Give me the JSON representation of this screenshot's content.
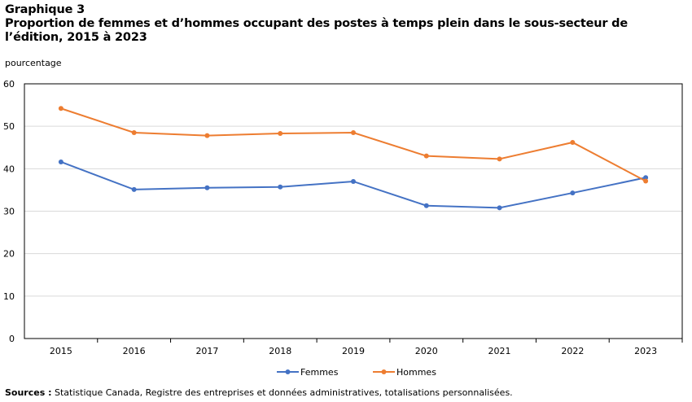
{
  "title_line1": "Graphique 3",
  "title_line2": "Proportion de femmes et d’hommes occupant des postes à temps plein dans le sous-secteur de l’édition, 2015 à 2023",
  "unit_label": "pourcentage",
  "source_label": "Sources :",
  "source_text": " Statistique Canada, Registre des entreprises et données administratives, totalisations personnalisées.",
  "chart_data": {
    "type": "line",
    "title": "Proportion de femmes et d’hommes occupant des postes à temps plein dans le sous-secteur de l’édition, 2015 à 2023",
    "ylabel": "pourcentage",
    "xlabel": "",
    "categories": [
      "2015",
      "2016",
      "2017",
      "2018",
      "2019",
      "2020",
      "2021",
      "2022",
      "2023"
    ],
    "ylim": [
      0,
      60
    ],
    "yticks": [
      0,
      10,
      20,
      30,
      40,
      50,
      60
    ],
    "grid": true,
    "legend": "bottom",
    "series": [
      {
        "name": "Femmes",
        "color": "#4472C4",
        "values": [
          41.6,
          35.1,
          35.5,
          35.7,
          37.0,
          31.3,
          30.8,
          34.3,
          37.9
        ]
      },
      {
        "name": "Hommes",
        "color": "#ED7D31",
        "values": [
          54.2,
          48.5,
          47.8,
          48.3,
          48.5,
          43.0,
          42.3,
          46.2,
          37.1
        ]
      }
    ]
  }
}
